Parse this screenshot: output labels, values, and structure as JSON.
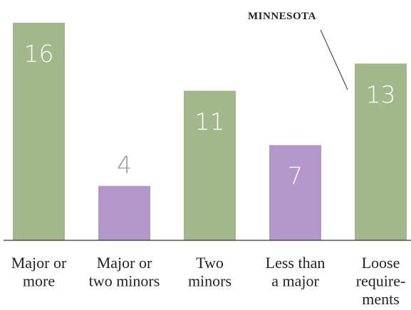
{
  "chart_data": {
    "type": "bar",
    "categories": [
      "Major or\nmore",
      "Major or\ntwo minors",
      "Two\nminors",
      "Less than\na major",
      "Loose\nrequire-\nments"
    ],
    "values": [
      16,
      4,
      11,
      7,
      13
    ],
    "colors": [
      "#a3b88a",
      "#b497c9",
      "#a3b88a",
      "#b497c9",
      "#a3b88a"
    ],
    "ylim": [
      0,
      16
    ],
    "annotation": "MINNESOTA"
  }
}
